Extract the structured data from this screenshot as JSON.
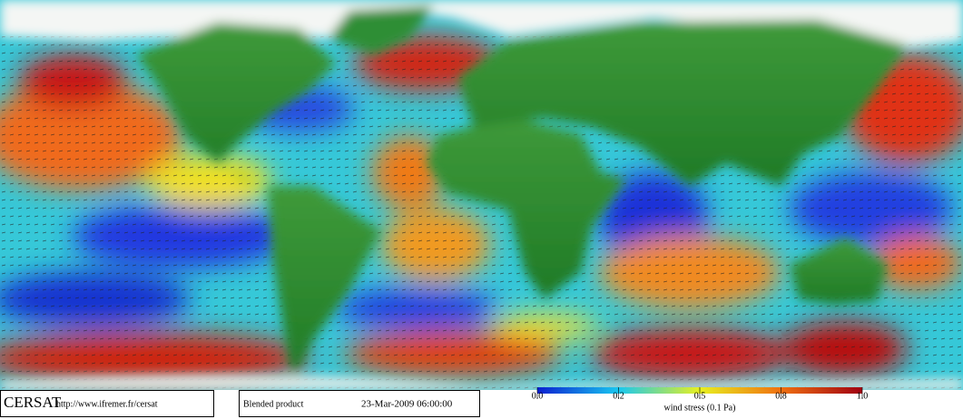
{
  "footer": {
    "logo": "CERSAT",
    "url": "http://www.ifremer.fr/cersat",
    "product": "Blended product",
    "timestamp": "23-Mar-2009 06:00:00"
  },
  "colorbar": {
    "label": "wind stress (0.1 Pa)",
    "ticks": [
      {
        "value": 0,
        "label": "0.0"
      },
      0.2,
      0.5,
      0.8,
      {
        "value": 1,
        "label": "1.0"
      }
    ]
  }
}
